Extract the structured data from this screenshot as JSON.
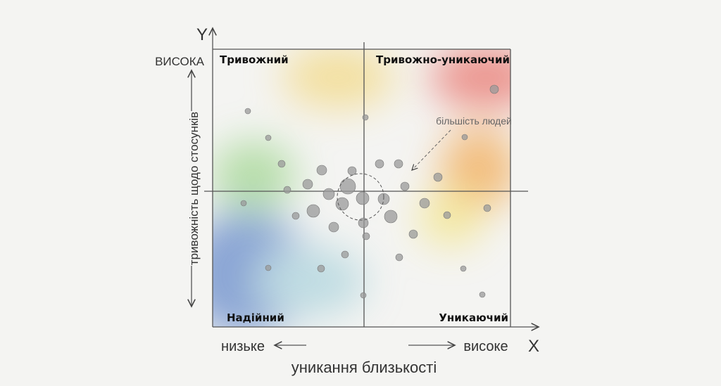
{
  "axis_y": {
    "letter": "Y",
    "high": "ВИСОКА",
    "title": "тривожність щодо стосунків"
  },
  "axis_x": {
    "letter": "X",
    "low": "низьке",
    "high": "високе",
    "title": "уникання близькості"
  },
  "quadrants": {
    "top_left": "Тривожний",
    "top_right": "Тривожно-уникаючий",
    "bottom_left": "Надійний",
    "bottom_right": "Уникаючий"
  },
  "annotation": "більшість людей"
}
